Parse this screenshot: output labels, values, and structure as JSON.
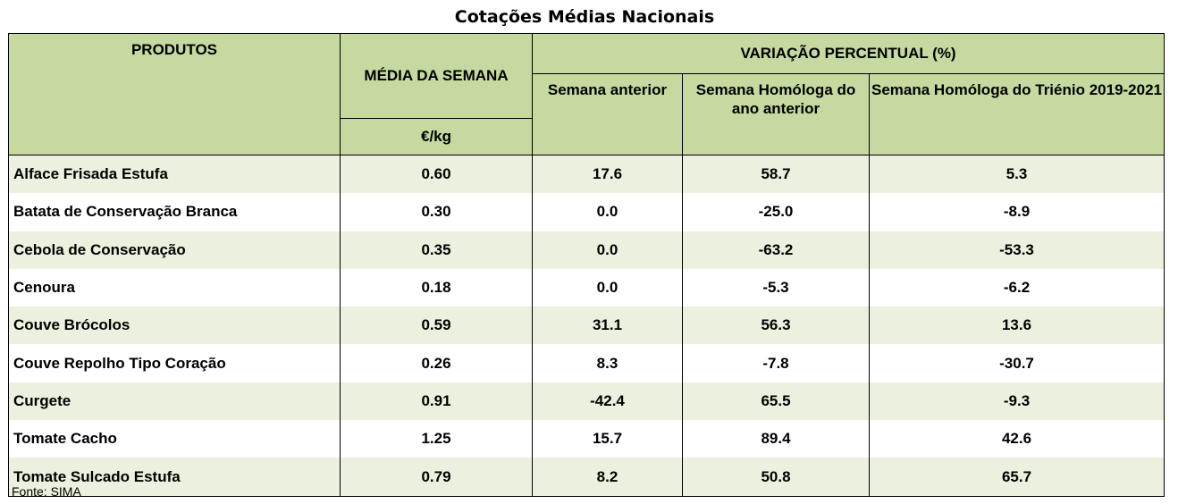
{
  "title": "Cotações Médias Nacionais",
  "headers": {
    "produtos": "PRODUTOS",
    "media": "MÉDIA DA SEMANA",
    "unit": "€/kg",
    "variacao": "VARIAÇÃO PERCENTUAL (%)",
    "sub1": "Semana anterior",
    "sub2": "Semana Homóloga do ano anterior",
    "sub3": "Semana Homóloga do Triénio 2019-2021"
  },
  "rows": [
    {
      "produto": "Alface Frisada Estufa",
      "media": "0.60",
      "semana_anterior": "17.6",
      "ano_anterior": "58.7",
      "trienio": "5.3"
    },
    {
      "produto": "Batata de Conservação Branca",
      "media": "0.30",
      "semana_anterior": "0.0",
      "ano_anterior": "-25.0",
      "trienio": "-8.9"
    },
    {
      "produto": "Cebola de Conservação",
      "media": "0.35",
      "semana_anterior": "0.0",
      "ano_anterior": "-63.2",
      "trienio": "-53.3"
    },
    {
      "produto": "Cenoura",
      "media": "0.18",
      "semana_anterior": "0.0",
      "ano_anterior": "-5.3",
      "trienio": "-6.2"
    },
    {
      "produto": "Couve Brócolos",
      "media": "0.59",
      "semana_anterior": "31.1",
      "ano_anterior": "56.3",
      "trienio": "13.6"
    },
    {
      "produto": "Couve Repolho Tipo Coração",
      "media": "0.26",
      "semana_anterior": "8.3",
      "ano_anterior": "-7.8",
      "trienio": "-30.7"
    },
    {
      "produto": "Curgete",
      "media": "0.91",
      "semana_anterior": "-42.4",
      "ano_anterior": "65.5",
      "trienio": "-9.3"
    },
    {
      "produto": "Tomate Cacho",
      "media": "1.25",
      "semana_anterior": "15.7",
      "ano_anterior": "89.4",
      "trienio": "42.6"
    },
    {
      "produto": "Tomate Sulcado Estufa",
      "media": "0.79",
      "semana_anterior": "8.2",
      "ano_anterior": "50.8",
      "trienio": "65.7"
    }
  ],
  "source": "Fonte: SIMA",
  "colors": {
    "header_bg": "#c5d9a0",
    "stripe_bg": "#ebf1de"
  }
}
